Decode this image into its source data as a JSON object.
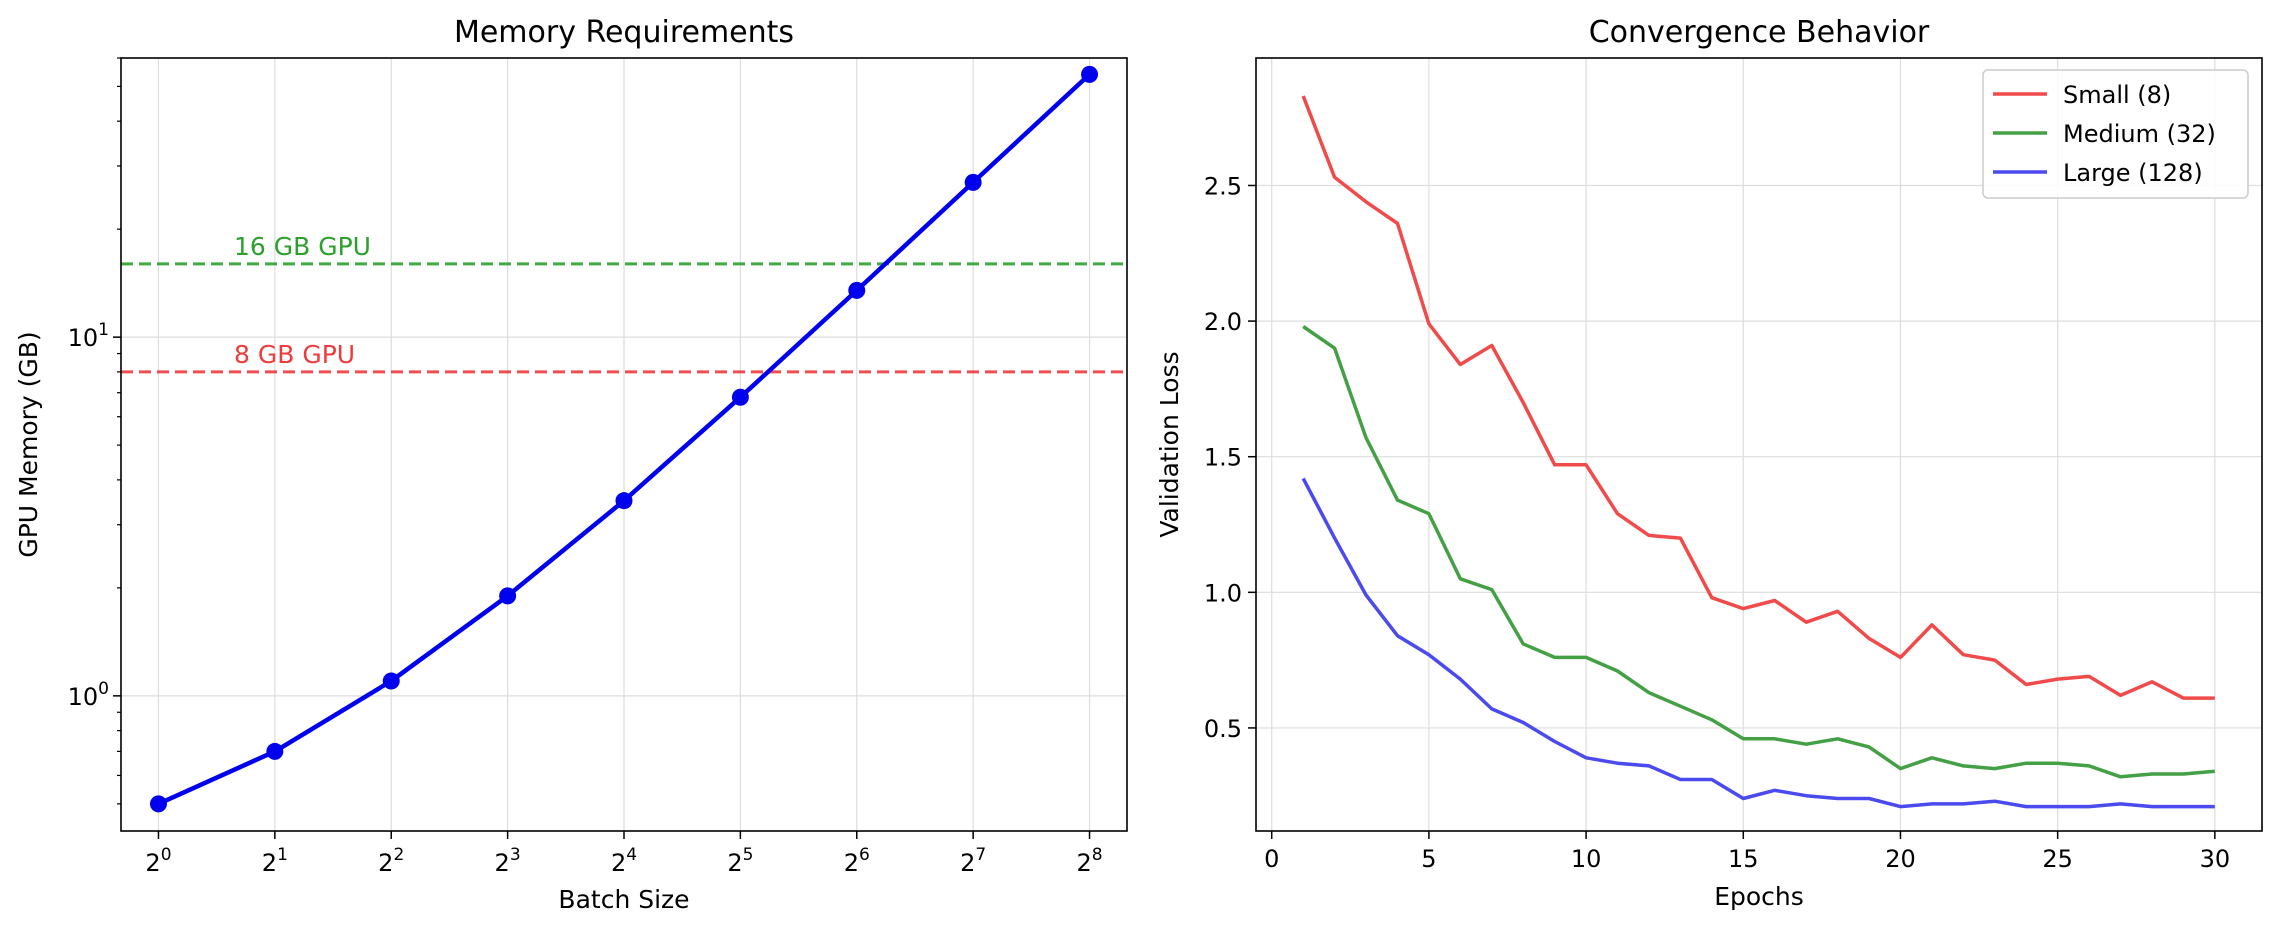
{
  "chart_data": [
    {
      "type": "line",
      "title": "Memory Requirements",
      "xlabel": "Batch Size",
      "ylabel": "GPU Memory (GB)",
      "xscale": "log2",
      "yscale": "log10",
      "xlim": [
        0.8,
        320
      ],
      "ylim": [
        0.42,
        60
      ],
      "grid": true,
      "x_ticks": [
        {
          "value": 1,
          "base": "2",
          "exp": "0"
        },
        {
          "value": 2,
          "base": "2",
          "exp": "1"
        },
        {
          "value": 4,
          "base": "2",
          "exp": "2"
        },
        {
          "value": 8,
          "base": "2",
          "exp": "3"
        },
        {
          "value": 16,
          "base": "2",
          "exp": "4"
        },
        {
          "value": 32,
          "base": "2",
          "exp": "5"
        },
        {
          "value": 64,
          "base": "2",
          "exp": "6"
        },
        {
          "value": 128,
          "base": "2",
          "exp": "7"
        },
        {
          "value": 256,
          "base": "2",
          "exp": "8"
        }
      ],
      "y_ticks": [
        {
          "value": 1,
          "base": "10",
          "exp": "0"
        },
        {
          "value": 10,
          "base": "10",
          "exp": "1"
        }
      ],
      "series": [
        {
          "color": "#0000ee",
          "marker": "circle",
          "x": [
            1,
            2,
            4,
            8,
            16,
            32,
            64,
            128,
            256
          ],
          "y": [
            0.5,
            0.7,
            1.1,
            1.9,
            3.5,
            6.8,
            13.5,
            27,
            54
          ]
        }
      ],
      "reference_lines": [
        {
          "y": 16,
          "label": "16 GB GPU",
          "color": "#2ca02c"
        },
        {
          "y": 8,
          "label": "8 GB GPU",
          "color": "#ee3b3b"
        }
      ]
    },
    {
      "type": "line",
      "title": "Convergence Behavior",
      "xlabel": "Epochs",
      "ylabel": "Validation Loss",
      "xlim": [
        -0.5,
        31.5
      ],
      "ylim": [
        0.12,
        2.97
      ],
      "grid": true,
      "legend": "top-right",
      "x_ticks": [
        "0",
        "5",
        "10",
        "15",
        "20",
        "25",
        "30"
      ],
      "y_ticks": [
        "0.5",
        "1.0",
        "1.5",
        "2.0",
        "2.5"
      ],
      "x": [
        1,
        2,
        3,
        4,
        5,
        6,
        7,
        8,
        9,
        10,
        11,
        12,
        13,
        14,
        15,
        16,
        17,
        18,
        19,
        20,
        21,
        22,
        23,
        24,
        25,
        26,
        27,
        28,
        29,
        30
      ],
      "series": [
        {
          "name": "Small (8)",
          "color": "#f04a4a",
          "values": [
            2.83,
            2.53,
            2.44,
            2.36,
            1.99,
            1.84,
            1.91,
            1.7,
            1.47,
            1.47,
            1.29,
            1.21,
            1.2,
            0.98,
            0.94,
            0.97,
            0.89,
            0.93,
            0.83,
            0.76,
            0.88,
            0.77,
            0.75,
            0.66,
            0.68,
            0.69,
            0.62,
            0.67,
            0.61,
            0.61
          ]
        },
        {
          "name": "Medium (32)",
          "color": "#44a044",
          "values": [
            1.98,
            1.9,
            1.57,
            1.34,
            1.29,
            1.05,
            1.01,
            0.81,
            0.76,
            0.76,
            0.71,
            0.63,
            0.58,
            0.53,
            0.46,
            0.46,
            0.44,
            0.46,
            0.43,
            0.35,
            0.39,
            0.36,
            0.35,
            0.37,
            0.37,
            0.36,
            0.32,
            0.33,
            0.33,
            0.34
          ]
        },
        {
          "name": "Large (128)",
          "color": "#4a4aee",
          "values": [
            1.42,
            1.2,
            0.99,
            0.84,
            0.77,
            0.68,
            0.57,
            0.52,
            0.45,
            0.39,
            0.37,
            0.36,
            0.31,
            0.31,
            0.24,
            0.27,
            0.25,
            0.24,
            0.24,
            0.21,
            0.22,
            0.22,
            0.23,
            0.21,
            0.21,
            0.21,
            0.22,
            0.21,
            0.21,
            0.21
          ]
        }
      ]
    }
  ]
}
